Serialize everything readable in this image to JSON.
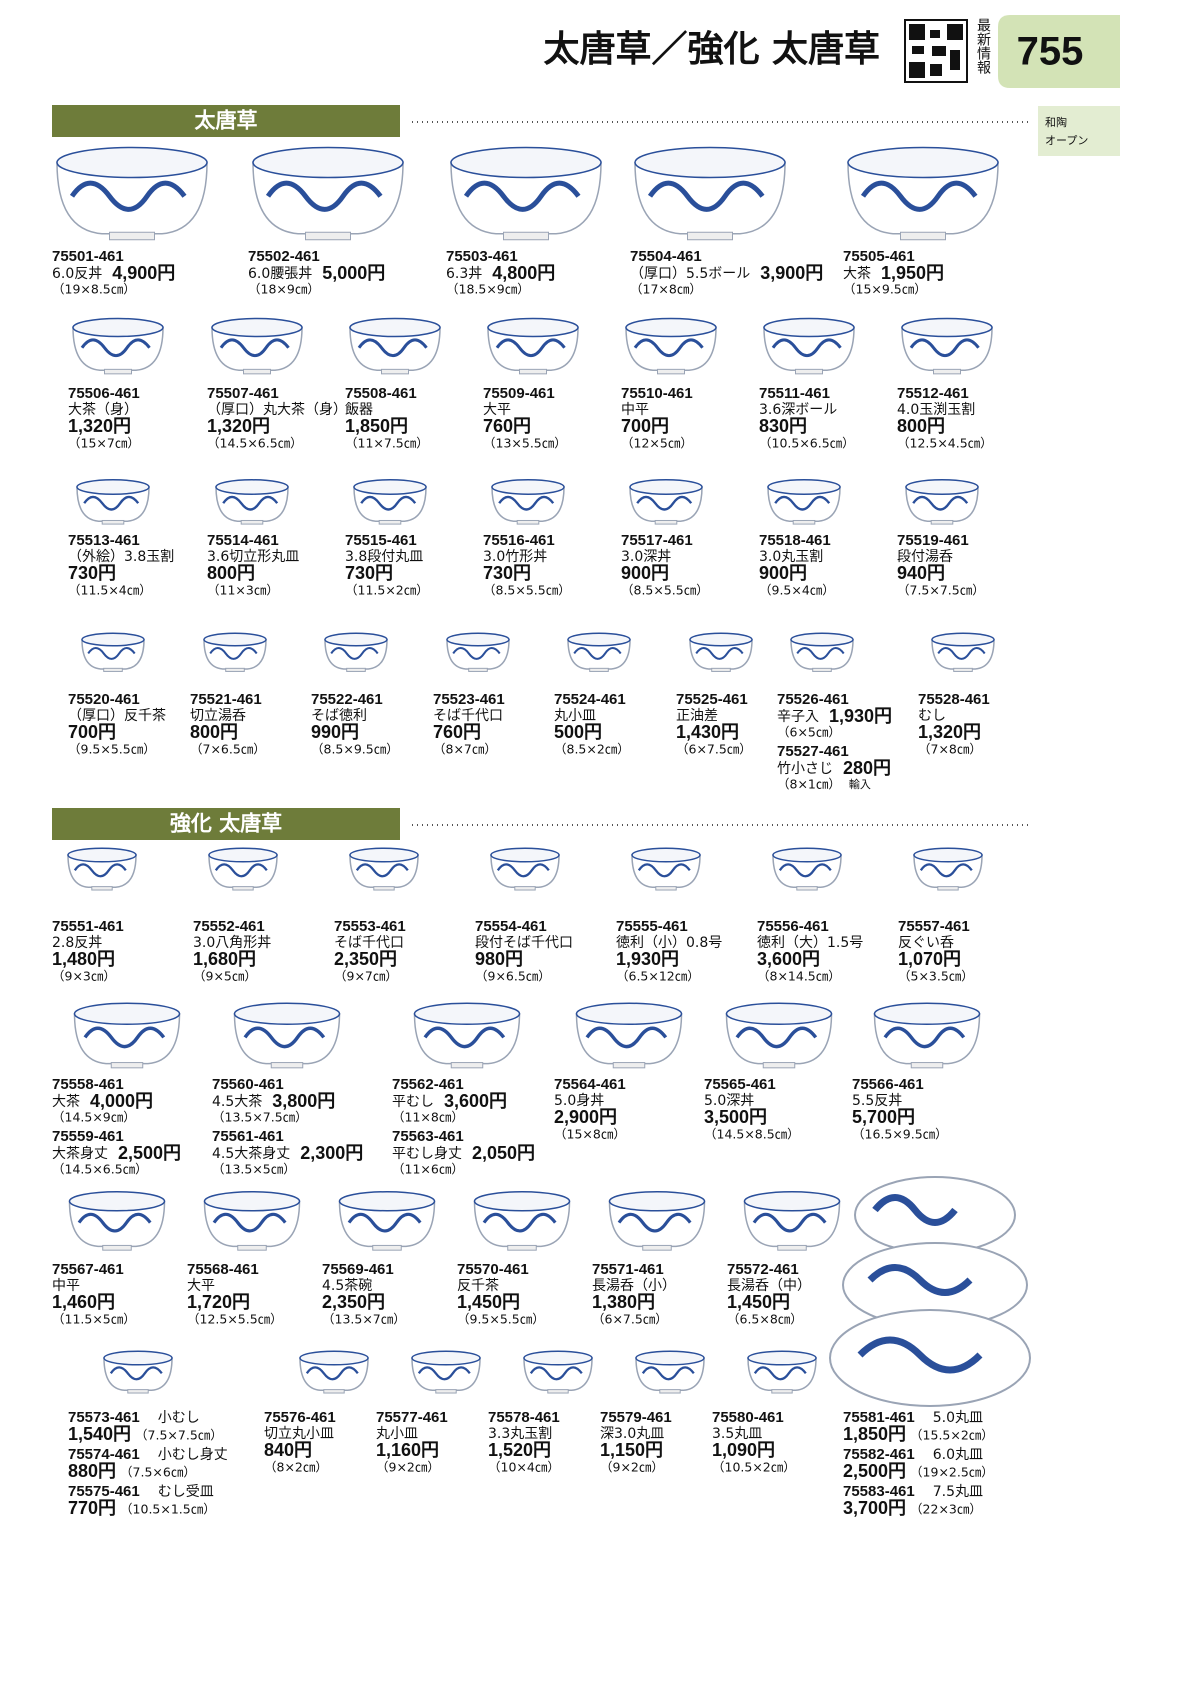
{
  "header": {
    "title": "太唐草／強化 太唐草",
    "news": "最新情報",
    "page": "755",
    "tab": [
      "和陶",
      "オープン"
    ]
  },
  "sections": [
    {
      "title": "太唐草",
      "rows": [
        [
          [
            {
              "code": "75501-461",
              "name": "6.0反丼",
              "price": "4,900円",
              "size": "（19×8.5㎝）"
            }
          ],
          [
            {
              "code": "75502-461",
              "name": "6.0腰張丼",
              "price": "5,000円",
              "size": "（18×9㎝）"
            }
          ],
          [
            {
              "code": "75503-461",
              "name": "6.3丼",
              "price": "4,800円",
              "size": "（18.5×9㎝）"
            }
          ],
          [
            {
              "code": "75504-461",
              "name": "（厚口）5.5ボール",
              "price": "3,900円",
              "size": "（17×8㎝）"
            }
          ],
          [
            {
              "code": "75505-461",
              "name": "大茶",
              "price": "1,950円",
              "size": "（15×9.5㎝）"
            }
          ]
        ],
        [
          [
            {
              "code": "75506-461",
              "name": "大茶（身）",
              "price": "1,320円",
              "size": "（15×7㎝）"
            }
          ],
          [
            {
              "code": "75507-461",
              "name": "（厚口）丸大茶（身）",
              "price": "1,320円",
              "size": "（14.5×6.5㎝）"
            }
          ],
          [
            {
              "code": "75508-461",
              "name": "飯器",
              "price": "1,850円",
              "size": "（11×7.5㎝）"
            }
          ],
          [
            {
              "code": "75509-461",
              "name": "大平",
              "price": "760円",
              "size": "（13×5.5㎝）"
            }
          ],
          [
            {
              "code": "75510-461",
              "name": "中平",
              "price": "700円",
              "size": "（12×5㎝）"
            }
          ],
          [
            {
              "code": "75511-461",
              "name": "3.6深ボール",
              "price": "830円",
              "size": "（10.5×6.5㎝）"
            }
          ],
          [
            {
              "code": "75512-461",
              "name": "4.0玉渕玉割",
              "price": "800円",
              "size": "（12.5×4.5㎝）"
            }
          ]
        ],
        [
          [
            {
              "code": "75513-461",
              "name": "（外絵）3.8玉割",
              "price": "730円",
              "size": "（11.5×4㎝）"
            }
          ],
          [
            {
              "code": "75514-461",
              "name": "3.6切立形丸皿",
              "price": "800円",
              "size": "（11×3㎝）"
            }
          ],
          [
            {
              "code": "75515-461",
              "name": "3.8段付丸皿",
              "price": "730円",
              "size": "（11.5×2㎝）"
            }
          ],
          [
            {
              "code": "75516-461",
              "name": "3.0竹形丼",
              "price": "730円",
              "size": "（8.5×5.5㎝）"
            }
          ],
          [
            {
              "code": "75517-461",
              "name": "3.0深丼",
              "price": "900円",
              "size": "（8.5×5.5㎝）"
            }
          ],
          [
            {
              "code": "75518-461",
              "name": "3.0丸玉割",
              "price": "900円",
              "size": "（9.5×4㎝）"
            }
          ],
          [
            {
              "code": "75519-461",
              "name": "段付湯呑",
              "price": "940円",
              "size": "（7.5×7.5㎝）"
            }
          ]
        ],
        [
          [
            {
              "code": "75520-461",
              "name": "（厚口）反千茶",
              "price": "700円",
              "size": "（9.5×5.5㎝）"
            }
          ],
          [
            {
              "code": "75521-461",
              "name": "切立湯呑",
              "price": "800円",
              "size": "（7×6.5㎝）"
            }
          ],
          [
            {
              "code": "75522-461",
              "name": "そば徳利",
              "price": "990円",
              "size": "（8.5×9.5㎝）"
            }
          ],
          [
            {
              "code": "75523-461",
              "name": "そば千代口",
              "price": "760円",
              "size": "（8×7㎝）"
            }
          ],
          [
            {
              "code": "75524-461",
              "name": "丸小皿",
              "price": "500円",
              "size": "（8.5×2㎝）"
            }
          ],
          [
            {
              "code": "75525-461",
              "name": "正油差",
              "price": "1,430円",
              "size": "（6×7.5㎝）"
            }
          ],
          [
            {
              "code": "75526-461",
              "name": "辛子入",
              "price": "1,930円",
              "size": "（6×5㎝）"
            },
            {
              "code": "75527-461",
              "name": "竹小さじ",
              "price": "280円",
              "size": "（8×1㎝）",
              "note": "輸入"
            }
          ],
          [
            {
              "code": "75528-461",
              "name": "むし",
              "price": "1,320円",
              "size": "（7×8㎝）"
            }
          ]
        ]
      ]
    },
    {
      "title": "強化 太唐草",
      "rows": [
        [
          [
            {
              "code": "75551-461",
              "name": "2.8反丼",
              "price": "1,480円",
              "size": "（9×3㎝）"
            }
          ],
          [
            {
              "code": "75552-461",
              "name": "3.0八角形丼",
              "price": "1,680円",
              "size": "（9×5㎝）"
            }
          ],
          [
            {
              "code": "75553-461",
              "name": "そば千代口",
              "price": "2,350円",
              "size": "（9×7㎝）"
            }
          ],
          [
            {
              "code": "75554-461",
              "name": "段付そば千代口",
              "price": "980円",
              "size": "（9×6.5㎝）"
            }
          ],
          [
            {
              "code": "75555-461",
              "name": "徳利（小）0.8号",
              "price": "1,930円",
              "size": "（6.5×12㎝）"
            }
          ],
          [
            {
              "code": "75556-461",
              "name": "徳利（大）1.5号",
              "price": "3,600円",
              "size": "（8×14.5㎝）"
            }
          ],
          [
            {
              "code": "75557-461",
              "name": "反ぐい呑",
              "price": "1,070円",
              "size": "（5×3.5㎝）"
            }
          ]
        ],
        [
          [
            {
              "code": "75558-461",
              "name": "大茶",
              "price": "4,000円",
              "size": "（14.5×9㎝）"
            },
            {
              "code": "75559-461",
              "name": "大茶身丈",
              "price": "2,500円",
              "size": "（14.5×6.5㎝）"
            }
          ],
          [
            {
              "code": "75560-461",
              "name": "4.5大茶",
              "price": "3,800円",
              "size": "（13.5×7.5㎝）"
            },
            {
              "code": "75561-461",
              "name": "4.5大茶身丈",
              "price": "2,300円",
              "size": "（13.5×5㎝）"
            }
          ],
          [
            {
              "code": "75562-461",
              "name": "平むし",
              "price": "3,600円",
              "size": "（11×8㎝）"
            },
            {
              "code": "75563-461",
              "name": "平むし身丈",
              "price": "2,050円",
              "size": "（11×6㎝）"
            }
          ],
          [
            {
              "code": "75564-461",
              "name": "5.0身丼",
              "price": "2,900円",
              "size": "（15×8㎝）"
            }
          ],
          [
            {
              "code": "75565-461",
              "name": "5.0深丼",
              "price": "3,500円",
              "size": "（14.5×8.5㎝）"
            }
          ],
          [
            {
              "code": "75566-461",
              "name": "5.5反丼",
              "price": "5,700円",
              "size": "（16.5×9.5㎝）"
            }
          ]
        ],
        [
          [
            {
              "code": "75567-461",
              "name": "中平",
              "price": "1,460円",
              "size": "（11.5×5㎝）"
            }
          ],
          [
            {
              "code": "75568-461",
              "name": "大平",
              "price": "1,720円",
              "size": "（12.5×5.5㎝）"
            }
          ],
          [
            {
              "code": "75569-461",
              "name": "4.5茶碗",
              "price": "2,350円",
              "size": "（13.5×7㎝）"
            }
          ],
          [
            {
              "code": "75570-461",
              "name": "反千茶",
              "price": "1,450円",
              "size": "（9.5×5.5㎝）"
            }
          ],
          [
            {
              "code": "75571-461",
              "name": "長湯呑（小）",
              "price": "1,380円",
              "size": "（6×7.5㎝）"
            }
          ],
          [
            {
              "code": "75572-461",
              "name": "長湯呑（中）",
              "price": "1,450円",
              "size": "（6.5×8㎝）"
            }
          ]
        ],
        [
          [
            {
              "code": "75573-461",
              "name": "小むし",
              "price": "1,540円",
              "size": "（7.5×7.5㎝）"
            },
            {
              "code": "75574-461",
              "name": "小むし身丈",
              "price": "880円",
              "size": "（7.5×6㎝）"
            },
            {
              "code": "75575-461",
              "name": "むし受皿",
              "price": "770円",
              "size": "（10.5×1.5㎝）"
            }
          ],
          [
            {
              "code": "75576-461",
              "name": "切立丸小皿",
              "price": "840円",
              "size": "（8×2㎝）"
            }
          ],
          [
            {
              "code": "75577-461",
              "name": "丸小皿",
              "price": "1,160円",
              "size": "（9×2㎝）"
            }
          ],
          [
            {
              "code": "75578-461",
              "name": "3.3丸玉割",
              "price": "1,520円",
              "size": "（10×4㎝）"
            }
          ],
          [
            {
              "code": "75579-461",
              "name": "深3.0丸皿",
              "price": "1,150円",
              "size": "（9×2㎝）"
            }
          ],
          [
            {
              "code": "75580-461",
              "name": "3.5丸皿",
              "price": "1,090円",
              "size": "（10.5×2㎝）"
            }
          ],
          [
            {
              "code": "75581-461",
              "name": "5.0丸皿",
              "price": "1,850円",
              "size": "（15.5×2㎝）"
            },
            {
              "code": "75582-461",
              "name": "6.0丸皿",
              "price": "2,500円",
              "size": "（19×2.5㎝）"
            },
            {
              "code": "75583-461",
              "name": "7.5丸皿",
              "price": "3,700円",
              "size": "（22×3㎝）"
            }
          ]
        ]
      ]
    }
  ]
}
